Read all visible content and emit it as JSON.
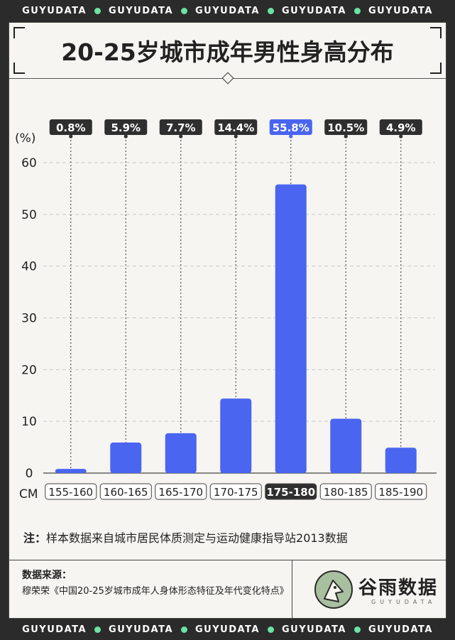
{
  "ticker": {
    "items": [
      "GUYUDATA",
      "GUYUDATA",
      "GUYUDATA",
      "GUYUDATA",
      "GUYUDATA"
    ],
    "dot_color": "#6be3a4"
  },
  "title": "20-25岁城市成年男性身高分布",
  "colors": {
    "bar": "#4a65f0",
    "highlight_label_bg": "#4a65f0",
    "label_bg": "#2f2f2f",
    "grid": "#c9c9c9",
    "selected_tick_bg": "#2f2f2f"
  },
  "chart_data": {
    "type": "bar",
    "title": "20-25岁城市成年男性身高分布",
    "ylabel": "(%)",
    "xlabel": "CM",
    "ylim": [
      0,
      60
    ],
    "yticks": [
      0,
      10,
      20,
      30,
      40,
      50,
      60
    ],
    "categories": [
      "155-160",
      "160-165",
      "165-170",
      "170-175",
      "175-180",
      "180-185",
      "185-190"
    ],
    "values": [
      0.8,
      5.9,
      7.7,
      14.4,
      55.8,
      10.5,
      4.9
    ],
    "value_labels": [
      "0.8%",
      "5.9%",
      "7.7%",
      "14.4%",
      "55.8%",
      "10.5%",
      "4.9%"
    ],
    "highlight_index": 4
  },
  "note": {
    "label": "注：",
    "text": "样本数据来自城市居民体质测定与运动健康指导站2013数据"
  },
  "source": {
    "label": "数据来源：",
    "text": "穆荣荣《中国20-25岁城市成年人身体形态特征及年代变化特点》"
  },
  "brand": {
    "cn": "谷雨数据",
    "en": "GUYUDATA"
  }
}
